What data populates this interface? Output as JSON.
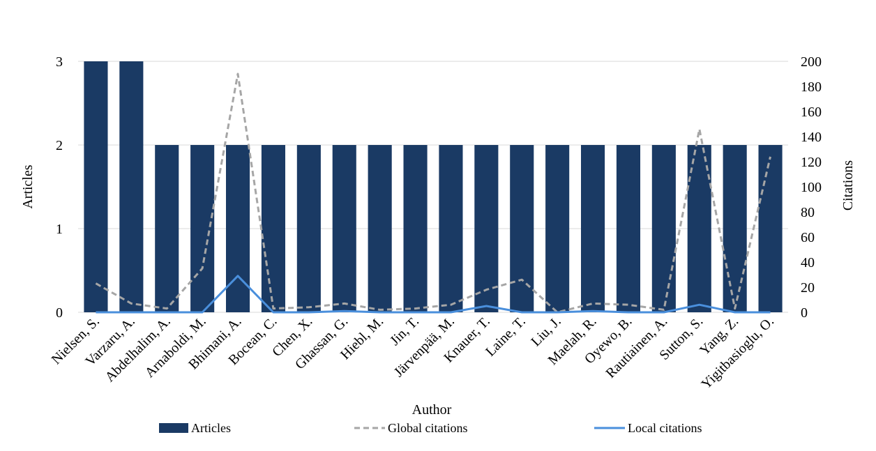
{
  "chart_data": {
    "type": "bar",
    "title": "",
    "xlabel": "Author",
    "ylabel": "Articles",
    "y2label": "Citations",
    "ylim": [
      0,
      3
    ],
    "y2lim": [
      0,
      200
    ],
    "yticks": [
      0,
      1,
      2,
      3
    ],
    "y2ticks": [
      0,
      20,
      40,
      60,
      80,
      100,
      120,
      140,
      160,
      180,
      200
    ],
    "grid": "horizontal",
    "legend_position": "bottom",
    "categories": [
      "Nielsen, S.",
      "Varzaru, A.",
      "Abdelhalim, A.",
      "Arnaboldi, M.",
      "Bhimani, A.",
      "Bocean, C.",
      "Chen, X.",
      "Ghassan, G.",
      "Hiebl, M.",
      "Jin, T.",
      "Järvenpää, M.",
      "Knauer, T.",
      "Laine, T.",
      "Liu, J.",
      "Maelah, R.",
      "Oyewo, B.",
      "Rautiainen, A.",
      "Sutton, S.",
      "Yang, Z.",
      "Yigitbasioglu, O."
    ],
    "series": [
      {
        "name": "Articles",
        "type": "bar",
        "axis": "left",
        "color": "#1a3a64",
        "values": [
          3,
          3,
          2,
          2,
          2,
          2,
          2,
          2,
          2,
          2,
          2,
          2,
          2,
          2,
          2,
          2,
          2,
          2,
          2,
          2
        ]
      },
      {
        "name": "Global citations",
        "type": "line",
        "style": "dashed",
        "axis": "right",
        "color": "#a6a6a6",
        "values": [
          23,
          7,
          3,
          35,
          190,
          3,
          4,
          7,
          2,
          3,
          6,
          18,
          26,
          0,
          7,
          6,
          2,
          146,
          3,
          124
        ]
      },
      {
        "name": "Local citations",
        "type": "line",
        "style": "solid",
        "axis": "right",
        "color": "#4a8fdc",
        "values": [
          0,
          0,
          0,
          0,
          29,
          0,
          0,
          1,
          0,
          0,
          0,
          5,
          0,
          0,
          1,
          0,
          0,
          6,
          0,
          0
        ]
      }
    ]
  }
}
